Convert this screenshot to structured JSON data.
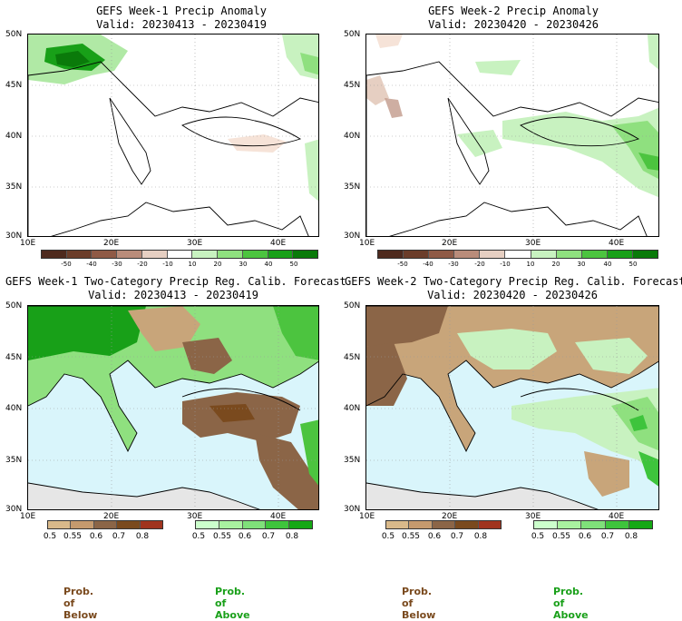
{
  "panels": {
    "p1": {
      "title": "GEFS Week-1 Precip Anomaly",
      "valid": "Valid: 20230413 - 20230419"
    },
    "p2": {
      "title": "GEFS Week-2 Precip Anomaly",
      "valid": "Valid: 20230420 - 20230426"
    },
    "p3": {
      "title": "GEFS Week-1 Two-Category Precip Reg. Calib. Forecast",
      "valid": "Valid: 20230413 - 20230419"
    },
    "p4": {
      "title": "GEFS Week-2 Two-Category Precip Reg. Calib. Forecast",
      "valid": "Valid: 20230420 - 20230426"
    }
  },
  "lat_labels": [
    "50N",
    "45N",
    "40N",
    "35N",
    "30N"
  ],
  "lon_labels": [
    "10E",
    "20E",
    "30E",
    "40E"
  ],
  "anomaly_colorbar": {
    "ticks": [
      "-50",
      "-40",
      "-30",
      "-20",
      "-10",
      "10",
      "20",
      "30",
      "40",
      "50"
    ],
    "colors": [
      "#4e2a1e",
      "#6b3d2a",
      "#8f5a46",
      "#b98c7a",
      "#e6cfc2",
      "#ffffff",
      "#c8f2c0",
      "#8fe07f",
      "#4cc43f",
      "#18a018",
      "#0a7a0a"
    ]
  },
  "prob_colorbars": {
    "below": {
      "ticks": [
        "0.5",
        "0.55",
        "0.6",
        "0.7",
        "0.8"
      ],
      "colors": [
        "#d9b98a",
        "#c59a6e",
        "#8b6547",
        "#7a4a1e",
        "#a0341e"
      ]
    },
    "above": {
      "ticks": [
        "0.5",
        "0.55",
        "0.6",
        "0.7",
        "0.8"
      ],
      "colors": [
        "#ccffcc",
        "#a9f2a0",
        "#7fe07a",
        "#3ec43c",
        "#15a815"
      ]
    }
  },
  "legend": {
    "below_label": "Prob. of Below",
    "above_label": "Prob. of Above",
    "below_color": "#7a4a1e",
    "above_color": "#1aa01a"
  },
  "colors": {
    "sea": "#d9f5fb",
    "land_grey": "#e6e6e6",
    "land_brown": "#c8a57a",
    "land_green": "#8fe07f",
    "dark_green": "#1aa01a"
  }
}
